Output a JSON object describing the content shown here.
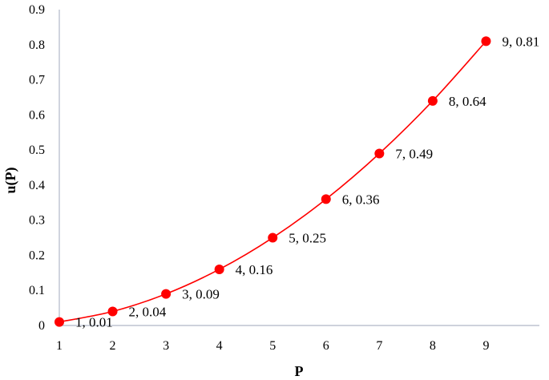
{
  "chart_data": {
    "type": "line",
    "title": "",
    "xlabel": "P",
    "ylabel": "u(P)",
    "x": [
      1,
      2,
      3,
      4,
      5,
      6,
      7,
      8,
      9
    ],
    "series": [
      {
        "values": [
          0.01,
          0.04,
          0.09,
          0.16,
          0.25,
          0.36,
          0.49,
          0.64,
          0.81
        ],
        "color": "#ff0000",
        "smooth": true,
        "markers": true,
        "data_labels": [
          "1, 0.01",
          "2, 0.04",
          "3, 0.09",
          "4, 0.16",
          "5, 0.25",
          "6, 0.36",
          "7, 0.49",
          "8, 0.64",
          "9, 0.81"
        ]
      }
    ],
    "xlim": [
      1,
      10
    ],
    "ylim": [
      0,
      0.9
    ],
    "x_ticks": [
      "1",
      "2",
      "3",
      "4",
      "5",
      "6",
      "7",
      "8",
      "9"
    ],
    "y_ticks": [
      "0",
      "0.1",
      "0.2",
      "0.3",
      "0.4",
      "0.5",
      "0.6",
      "0.7",
      "0.8",
      "0.9"
    ],
    "grid": false,
    "legend": "none",
    "axis_color": "#b0b8c8"
  }
}
